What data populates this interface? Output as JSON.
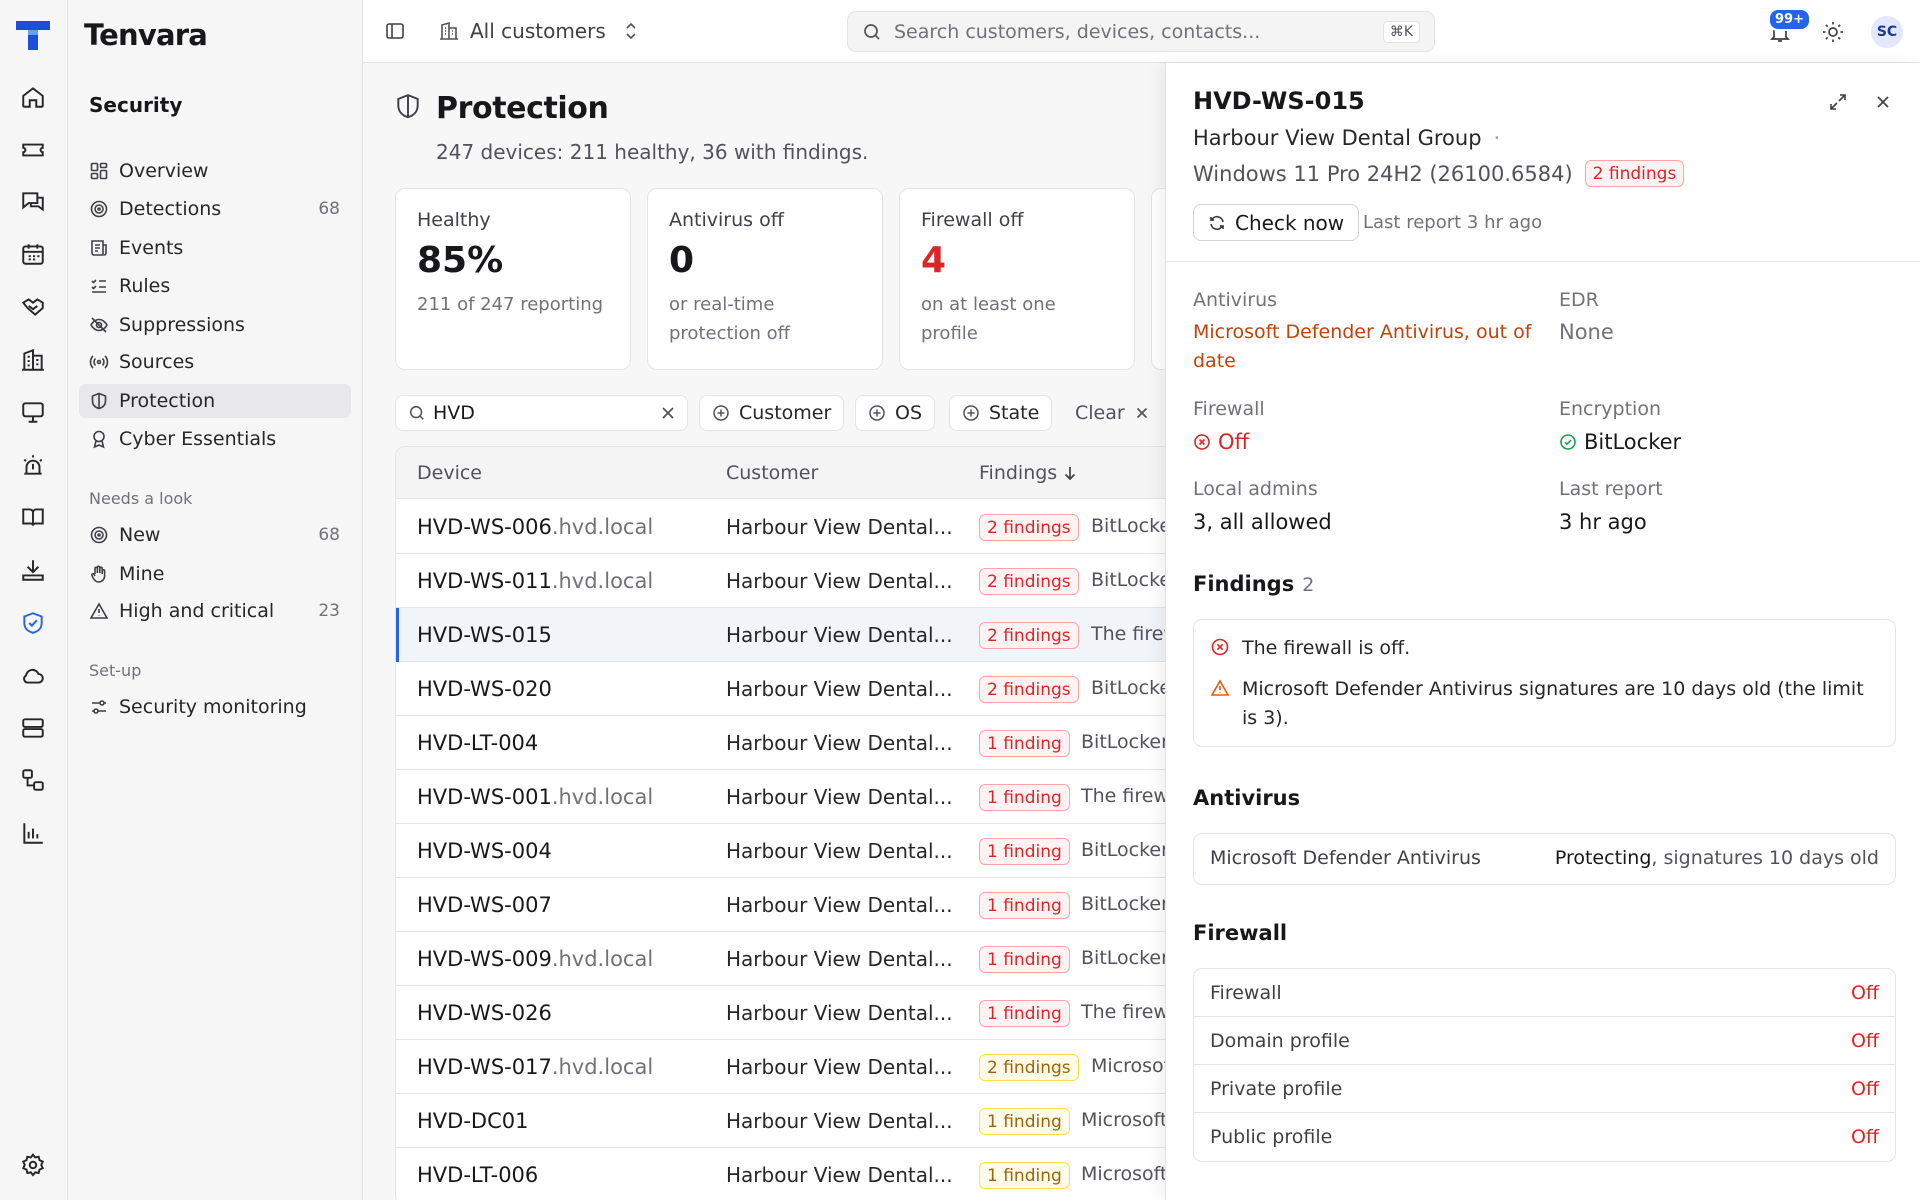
{
  "app": {
    "name": "Tenvara",
    "user_initials": "SC",
    "notifications": "99+"
  },
  "topbar": {
    "scope": "All customers",
    "search_placeholder": "Search customers, devices, contacts...",
    "search_shortcut": "⌘K"
  },
  "rail": [
    "home-icon",
    "ticket-icon",
    "chat-icon",
    "calendar-icon",
    "handshake-icon",
    "building-icon",
    "monitor-icon",
    "alarm-icon",
    "book-icon",
    "download-icon",
    "shield-check-icon",
    "cloud-icon",
    "server-icon",
    "workflow-icon",
    "chart-icon",
    "gear-icon"
  ],
  "sidebar": {
    "section": "Security",
    "items": [
      {
        "label": "Overview",
        "count": "",
        "icon": "overview-icon"
      },
      {
        "label": "Detections",
        "count": "68",
        "icon": "radar-icon"
      },
      {
        "label": "Events",
        "count": "",
        "icon": "events-icon"
      },
      {
        "label": "Rules",
        "count": "",
        "icon": "rules-icon"
      },
      {
        "label": "Suppressions",
        "count": "",
        "icon": "eye-off-icon"
      },
      {
        "label": "Sources",
        "count": "",
        "icon": "broadcast-icon"
      },
      {
        "label": "Protection",
        "count": "",
        "icon": "shield-icon"
      },
      {
        "label": "Cyber Essentials",
        "count": "",
        "icon": "award-icon"
      }
    ],
    "needs_look_label": "Needs a look",
    "needs_look": [
      {
        "label": "New",
        "count": "68",
        "icon": "radar-icon"
      },
      {
        "label": "Mine",
        "count": "",
        "icon": "hand-icon"
      },
      {
        "label": "High and critical",
        "count": "23",
        "icon": "warning-icon"
      }
    ],
    "setup_label": "Set-up",
    "setup": [
      {
        "label": "Security monitoring",
        "count": "",
        "icon": "sliders-icon"
      }
    ]
  },
  "page": {
    "title": "Protection",
    "subtitle": "247 devices: 211 healthy, 36 with findings.",
    "cards": [
      {
        "title": "Healthy",
        "value": "85%",
        "desc": "211 of 247 reporting",
        "red": false
      },
      {
        "title": "Antivirus off",
        "value": "0",
        "desc": "or real-time protection off",
        "red": false
      },
      {
        "title": "Firewall off",
        "value": "4",
        "desc": "on at least one profile",
        "red": true
      }
    ],
    "filter": {
      "value": "HVD",
      "chips": [
        "Customer",
        "OS",
        "State"
      ],
      "clear": "Clear"
    },
    "columns": [
      "Device",
      "Customer",
      "Findings"
    ],
    "rows": [
      {
        "device": "HVD-WS-006",
        "domain": ".hvd.local",
        "customer": "Harbour View Dental...",
        "badge": "2 findings",
        "tone": "red",
        "text": "BitLocker"
      },
      {
        "device": "HVD-WS-011",
        "domain": ".hvd.local",
        "customer": "Harbour View Dental...",
        "badge": "2 findings",
        "tone": "red",
        "text": "BitLocker"
      },
      {
        "device": "HVD-WS-015",
        "domain": "",
        "customer": "Harbour View Dental...",
        "badge": "2 findings",
        "tone": "red",
        "text": "The firewall"
      },
      {
        "device": "HVD-WS-020",
        "domain": "",
        "customer": "Harbour View Dental...",
        "badge": "2 findings",
        "tone": "red",
        "text": "BitLocker"
      },
      {
        "device": "HVD-LT-004",
        "domain": "",
        "customer": "Harbour View Dental...",
        "badge": "1 finding",
        "tone": "red",
        "text": "BitLocker"
      },
      {
        "device": "HVD-WS-001",
        "domain": ".hvd.local",
        "customer": "Harbour View Dental...",
        "badge": "1 finding",
        "tone": "red",
        "text": "The firewall"
      },
      {
        "device": "HVD-WS-004",
        "domain": "",
        "customer": "Harbour View Dental...",
        "badge": "1 finding",
        "tone": "red",
        "text": "BitLocker"
      },
      {
        "device": "HVD-WS-007",
        "domain": "",
        "customer": "Harbour View Dental...",
        "badge": "1 finding",
        "tone": "red",
        "text": "BitLocker"
      },
      {
        "device": "HVD-WS-009",
        "domain": ".hvd.local",
        "customer": "Harbour View Dental...",
        "badge": "1 finding",
        "tone": "red",
        "text": "BitLocker"
      },
      {
        "device": "HVD-WS-026",
        "domain": "",
        "customer": "Harbour View Dental...",
        "badge": "1 finding",
        "tone": "red",
        "text": "The firewall"
      },
      {
        "device": "HVD-WS-017",
        "domain": ".hvd.local",
        "customer": "Harbour View Dental...",
        "badge": "2 findings",
        "tone": "amber",
        "text": "Microsoft"
      },
      {
        "device": "HVD-DC01",
        "domain": "",
        "customer": "Harbour View Dental...",
        "badge": "1 finding",
        "tone": "amber",
        "text": "Microsoft"
      },
      {
        "device": "HVD-LT-006",
        "domain": "",
        "customer": "Harbour View Dental...",
        "badge": "1 finding",
        "tone": "amber",
        "text": "Microsoft"
      }
    ],
    "selected_row": 2
  },
  "panel": {
    "device": "HVD-WS-015",
    "customer": "Harbour View Dental Group",
    "os": "Windows 11 Pro 24H2 (26100.6584)",
    "findings_badge": "2 findings",
    "check_now": "Check now",
    "last_report_line": "Last report 3 hr ago",
    "fields": {
      "antivirus_label": "Antivirus",
      "antivirus_value": "Microsoft Defender Antivirus, out of date",
      "edr_label": "EDR",
      "edr_value": "None",
      "firewall_label": "Firewall",
      "firewall_value": "Off",
      "encryption_label": "Encryption",
      "encryption_value": "BitLocker",
      "admins_label": "Local admins",
      "admins_value": "3, all allowed",
      "last_label": "Last report",
      "last_value": "3 hr ago"
    },
    "findings_title": "Findings",
    "findings_count": "2",
    "findings": [
      {
        "text": "The firewall is off.",
        "icon": "x-circle-icon"
      },
      {
        "text": "Microsoft Defender Antivirus signatures are 10 days old (the limit is 3).",
        "icon": "warning-icon"
      }
    ],
    "antivirus_title": "Antivirus",
    "antivirus_row": {
      "name": "Microsoft Defender Antivirus",
      "status": "Protecting",
      "detail": ", signatures 10 days old"
    },
    "firewall_title": "Firewall",
    "firewall_rows": [
      {
        "label": "Firewall",
        "value": "Off"
      },
      {
        "label": "Domain profile",
        "value": "Off"
      },
      {
        "label": "Private profile",
        "value": "Off"
      },
      {
        "label": "Public profile",
        "value": "Off"
      }
    ]
  }
}
